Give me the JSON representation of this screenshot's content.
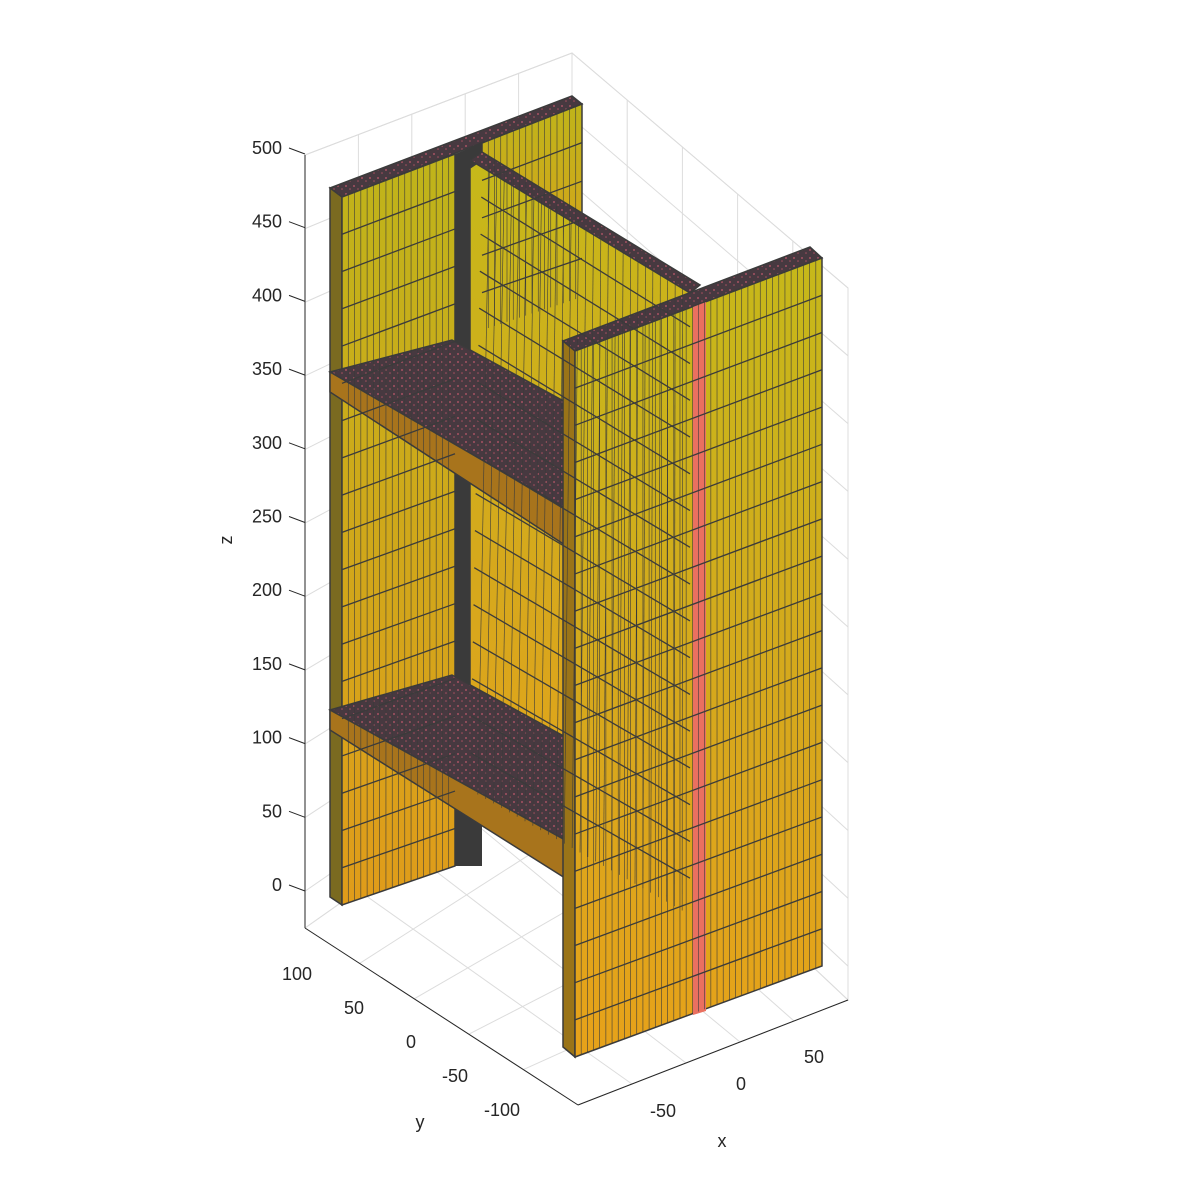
{
  "figure": {
    "type": "3d-mesh",
    "colors": {
      "face_light": "#c8b418",
      "face_dark": "#e3a81a",
      "edge": "#3b3b3b",
      "top_face": "#4a3a40",
      "top_speckle": "#c85a70",
      "highlight_strip": "#ea7060",
      "grid": "#dcdcdc",
      "axis": "#262626"
    }
  },
  "chart_data": {
    "type": "3d-mesh",
    "title": "",
    "xlabel": "x",
    "ylabel": "y",
    "zlabel": "z",
    "x_ticks": [
      "-50",
      "0",
      "50"
    ],
    "y_ticks": [
      "100",
      "50",
      "0",
      "-50",
      "-100"
    ],
    "z_ticks": [
      "500",
      "450",
      "400",
      "350",
      "300",
      "250",
      "200",
      "150",
      "100",
      "50",
      "0"
    ],
    "xlim": [
      -100,
      100
    ],
    "ylim": [
      -120,
      120
    ],
    "zlim": [
      -30,
      510
    ],
    "grid": true
  }
}
